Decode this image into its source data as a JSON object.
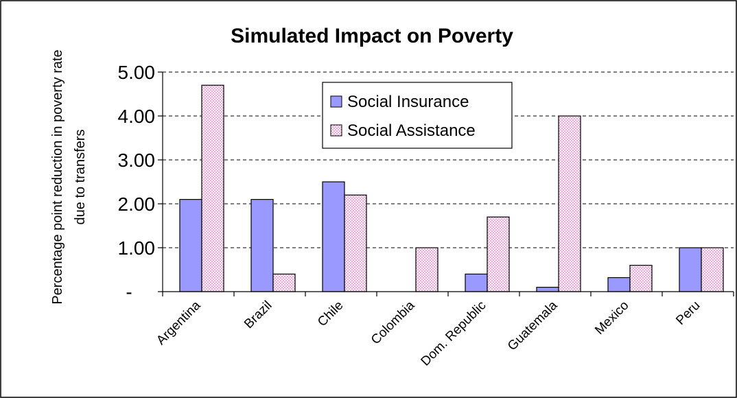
{
  "chart_data": {
    "type": "bar",
    "title": "Simulated Impact on Poverty",
    "ylabel": "Percentage point reduction in poverty rate due to transfers",
    "ylabel_lines": [
      "Percentage point reduction in poverty rate",
      "due to transfers"
    ],
    "ylim": [
      0,
      5
    ],
    "yticks": [
      0,
      1,
      2,
      3,
      4,
      5
    ],
    "ytick_labels": [
      "-",
      "1.00",
      "2.00",
      "3.00",
      "4.00",
      "5.00"
    ],
    "grid": "horizontal dashed",
    "legend_position": "top-center",
    "categories": [
      "Argentina",
      "Brazil",
      "Chile",
      "Colombia",
      "Dom. Republic",
      "Guatemala",
      "Mexico",
      "Peru"
    ],
    "series": [
      {
        "name": "Social Insurance",
        "values": [
          2.1,
          2.1,
          2.5,
          0.0,
          0.4,
          0.1,
          0.32,
          1.0
        ],
        "color": "#9999FF",
        "pattern": "solid"
      },
      {
        "name": "Social Assistance",
        "values": [
          4.7,
          0.4,
          2.2,
          1.0,
          1.7,
          4.0,
          0.6,
          1.0
        ],
        "color": "#FFCCFF",
        "pattern": "dotted"
      }
    ]
  }
}
